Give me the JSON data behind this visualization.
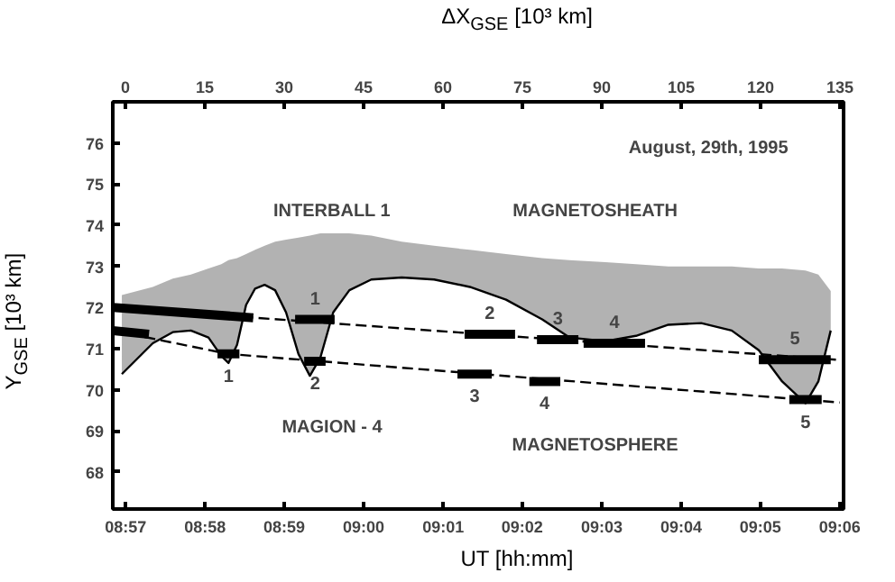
{
  "chart_data": {
    "type": "line",
    "xlabel": "UT [hh:mm]",
    "ylabel": "Y$_{GSE}$ [10³ km]",
    "x2label": "ΔX$_{GSE}$ [10³ km]",
    "xlim": [
      8.9473,
      9.1008
    ],
    "xticks": [
      {
        "value": 8.95,
        "label": "08:57"
      },
      {
        "value": 8.9667,
        "label": "08:58"
      },
      {
        "value": 8.9833,
        "label": "08:59"
      },
      {
        "value": 9.0,
        "label": "09:00"
      },
      {
        "value": 9.0167,
        "label": "09:01"
      },
      {
        "value": 9.0333,
        "label": "09:02"
      },
      {
        "value": 9.05,
        "label": "09:03"
      },
      {
        "value": 9.0667,
        "label": "09:04"
      },
      {
        "value": 9.0833,
        "label": "09:05"
      },
      {
        "value": 9.1,
        "label": "09:06"
      }
    ],
    "x2lim": [
      -2.4,
      135.7
    ],
    "x2ticks": [
      0,
      15,
      30,
      45,
      60,
      75,
      90,
      105,
      120,
      135
    ],
    "ylim": [
      67.1,
      77.0
    ],
    "yticks": [
      68,
      69,
      70,
      71,
      72,
      73,
      74,
      75,
      76
    ],
    "grid": false,
    "series": [
      {
        "color": "#000000",
        "line_style": "solid",
        "x": [
          8.9492,
          8.9557,
          8.9599,
          8.9637,
          8.9674,
          8.9701,
          8.9716,
          8.9734,
          8.9753,
          8.9772,
          8.9792,
          8.9814,
          8.9837,
          8.9863,
          8.9887,
          8.9909,
          8.9936,
          8.997,
          9.0016,
          9.008,
          9.0148,
          9.0223,
          9.0299,
          9.0375,
          9.0432,
          9.0508,
          9.0572,
          9.064,
          9.0709,
          9.0773,
          9.083,
          9.0879,
          9.0928,
          9.0955,
          9.0981
        ],
        "values": [
          70.38,
          71.13,
          71.4,
          71.44,
          71.27,
          70.82,
          70.65,
          71.09,
          72.06,
          72.46,
          72.55,
          72.42,
          71.88,
          70.87,
          70.34,
          70.78,
          71.88,
          72.42,
          72.68,
          72.73,
          72.68,
          72.5,
          72.19,
          71.71,
          71.27,
          71.18,
          71.31,
          71.58,
          71.62,
          71.44,
          70.96,
          70.2,
          69.67,
          70.2,
          71.44
        ],
        "lower": [
          70.38,
          71.13,
          71.4,
          71.44,
          71.27,
          70.82,
          70.65,
          71.09,
          72.06,
          72.46,
          72.55,
          72.42,
          71.88,
          70.87,
          70.34,
          70.78,
          71.88,
          72.42,
          72.68,
          72.73,
          72.68,
          72.5,
          72.19,
          71.71,
          71.27,
          71.18,
          71.31,
          71.58,
          71.62,
          71.44,
          70.96,
          70.2,
          69.67,
          70.2,
          71.44
        ],
        "upper": [
          72.3,
          72.5,
          72.7,
          72.8,
          72.95,
          73.05,
          73.15,
          73.2,
          73.3,
          73.4,
          73.5,
          73.6,
          73.65,
          73.7,
          73.75,
          73.8,
          73.8,
          73.8,
          73.75,
          73.6,
          73.5,
          73.4,
          73.3,
          73.2,
          73.15,
          73.1,
          73.05,
          73.0,
          73.0,
          73.0,
          72.95,
          72.95,
          72.9,
          72.8,
          72.4
        ]
      },
      {
        "color": "#000000",
        "line_style": "dashed",
        "x": [
          8.9473,
          9.0992
        ],
        "values": [
          72.0,
          70.73
        ]
      },
      {
        "color": "#000000",
        "line_style": "dashed",
        "x": [
          8.9473,
          8.9716,
          9.1
        ],
        "values": [
          71.44,
          70.87,
          69.69
        ]
      },
      {
        "color": "#000000",
        "line_style": "solid",
        "x": [
          8.9473,
          8.9768,
          null,
          8.9856,
          8.9939,
          null,
          9.0212,
          9.0318,
          null,
          9.0364,
          9.0451,
          null,
          9.0462,
          9.0591,
          null,
          9.083,
          9.0981
        ],
        "values": [
          72.0,
          71.75,
          null,
          71.71,
          71.71,
          null,
          71.35,
          71.35,
          null,
          71.22,
          71.22,
          null,
          71.13,
          71.13,
          null,
          70.73,
          70.73
        ]
      },
      {
        "color": "#000000",
        "line_style": "solid",
        "x": [
          8.9473,
          8.9549,
          null,
          8.9693,
          8.9739,
          null,
          8.9875,
          8.992,
          null,
          9.0197,
          9.0269,
          null,
          9.0348,
          9.0413,
          null,
          9.0894,
          9.0962
        ],
        "values": [
          71.44,
          71.35,
          null,
          70.87,
          70.87,
          null,
          70.69,
          70.69,
          null,
          70.38,
          70.38,
          null,
          70.2,
          70.2,
          null,
          69.76,
          69.76
        ]
      }
    ],
    "annotations": [
      "INTERBALL 1",
      "MAGION - 4",
      "MAGNETOSHEATH",
      "MAGNETOSPHERE",
      "August, 29th, 1995",
      {
        "text": "1",
        "x": 8.9898,
        "y": 71.71
      },
      {
        "text": "2",
        "x": 9.0265,
        "y": 71.35
      },
      {
        "text": "3",
        "x": 9.0408,
        "y": 71.22
      },
      {
        "text": "4",
        "x": 9.0527,
        "y": 71.13
      },
      {
        "text": "5",
        "x": 9.0906,
        "y": 70.73
      },
      {
        "text": "1",
        "x": 8.9716,
        "y": 70.87
      },
      {
        "text": "2",
        "x": 8.9898,
        "y": 70.69
      },
      {
        "text": "3",
        "x": 9.0233,
        "y": 70.38
      },
      {
        "text": "4",
        "x": 9.038,
        "y": 70.2
      },
      {
        "text": "5",
        "x": 9.0928,
        "y": 69.76
      }
    ]
  }
}
